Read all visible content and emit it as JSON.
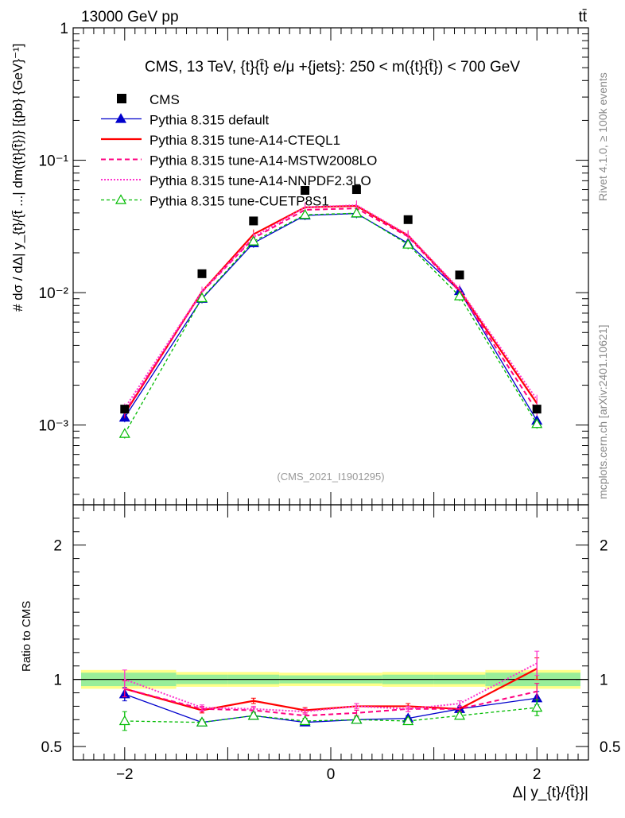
{
  "header": {
    "energy_label": "13000 GeV pp",
    "process_label": "tt̄"
  },
  "side_labels": {
    "rivet": "Rivet 4.1.0, ≥ 100k events",
    "mcplots": "mcplots.cern.ch [arXiv:2401.10621]"
  },
  "chart_data": {
    "type": "line",
    "title": "CMS, 13 TeV, {t}{t̄} e/μ +{jets}: 250 < m({t}{t̄}) < 700 GeV",
    "watermark": "(CMS_2021_I1901295)",
    "xlabel": "Δ| y_{t}/{t̄}}|",
    "ylabel_main": "# dσ / dΔ| y_{t}/{t̄ ...| dm({t}{t̄})} [{pb} {GeV}⁻¹]",
    "ylabel_ratio": "Ratio to CMS",
    "xlim": [
      -2.5,
      2.5
    ],
    "ylim_main": [
      0.00025,
      1
    ],
    "ylim_ratio": [
      0.4,
      2.3
    ],
    "x_ticks": [
      -2,
      0,
      2
    ],
    "x_tick_labels": [
      "−2",
      "0",
      "2"
    ],
    "y_main_ticks": [
      {
        "value": 1,
        "label": "1"
      },
      {
        "value": 0.1,
        "label": "10⁻¹"
      },
      {
        "value": 0.01,
        "label": "10⁻²"
      },
      {
        "value": 0.001,
        "label": "10⁻³"
      }
    ],
    "y_ratio_ticks": [
      {
        "value": 2,
        "label": "2"
      },
      {
        "value": 1,
        "label": "1"
      },
      {
        "value": 0.5,
        "label": "0.5"
      }
    ],
    "bin_edges": [
      -2.5,
      -1.5,
      -1.0,
      -0.5,
      0.0,
      0.5,
      1.0,
      1.5,
      2.5
    ],
    "x": [
      -2.0,
      -1.25,
      -0.75,
      -0.25,
      0.25,
      0.75,
      1.25,
      2.0
    ],
    "band_inner": [
      0.05,
      0.035,
      0.035,
      0.03,
      0.03,
      0.035,
      0.035,
      0.05
    ],
    "band_outer": [
      0.07,
      0.055,
      0.055,
      0.05,
      0.05,
      0.055,
      0.055,
      0.07
    ],
    "data": {
      "name": "CMS",
      "values": [
        0.00132,
        0.0139,
        0.0348,
        0.0592,
        0.06,
        0.0356,
        0.0136,
        0.00132
      ],
      "color": "#000000"
    },
    "series": [
      {
        "name": "Pythia 8.315 default",
        "color": "#0000cc",
        "dash": "",
        "width": 1.3,
        "marker": "triangle-filled",
        "values": [
          0.00114,
          0.009,
          0.0237,
          0.0383,
          0.0396,
          0.0236,
          0.0103,
          0.00108
        ],
        "ratio": [
          0.89,
          0.68,
          0.73,
          0.68,
          0.7,
          0.71,
          0.78,
          0.86
        ],
        "ratio_err": [
          0.05,
          0.02,
          0.02,
          0.02,
          0.02,
          0.02,
          0.02,
          0.05
        ]
      },
      {
        "name": "Pythia 8.315 tune-A14-CTEQL1",
        "color": "#ff0000",
        "dash": "",
        "width": 2.2,
        "marker": "none",
        "values": [
          0.00122,
          0.0102,
          0.0276,
          0.0441,
          0.0452,
          0.027,
          0.0104,
          0.00146
        ],
        "ratio": [
          0.93,
          0.77,
          0.84,
          0.77,
          0.8,
          0.8,
          0.78,
          1.08
        ],
        "ratio_err": [
          0.06,
          0.02,
          0.02,
          0.02,
          0.02,
          0.02,
          0.02,
          0.08
        ]
      },
      {
        "name": "Pythia 8.315 tune-A14-MSTW2008LO",
        "color": "#ff0080",
        "dash": "6,4",
        "width": 2.0,
        "marker": "none",
        "values": [
          0.00125,
          0.0101,
          0.0258,
          0.0422,
          0.0433,
          0.0265,
          0.0102,
          0.00128
        ],
        "ratio": [
          0.93,
          0.78,
          0.77,
          0.73,
          0.75,
          0.78,
          0.78,
          0.91
        ],
        "ratio_err": [
          0.06,
          0.02,
          0.02,
          0.02,
          0.02,
          0.02,
          0.02,
          0.06
        ]
      },
      {
        "name": "Pythia 8.315 tune-A14-NNPDF2.3LO",
        "color": "#ff33cc",
        "dash": "2,2",
        "width": 2.0,
        "marker": "none",
        "values": [
          0.00134,
          0.0102,
          0.0263,
          0.0441,
          0.0458,
          0.0273,
          0.0106,
          0.00156
        ],
        "ratio": [
          1.0,
          0.79,
          0.78,
          0.76,
          0.8,
          0.78,
          0.82,
          1.12
        ],
        "ratio_err": [
          0.07,
          0.02,
          0.02,
          0.02,
          0.02,
          0.02,
          0.02,
          0.09
        ]
      },
      {
        "name": "Pythia 8.315 tune-CUETP8S1",
        "color": "#00bb00",
        "dash": "4,3",
        "width": 1.3,
        "marker": "triangle-open",
        "values": [
          0.00086,
          0.0091,
          0.0244,
          0.0387,
          0.0398,
          0.0231,
          0.0094,
          0.00102
        ],
        "ratio": [
          0.69,
          0.68,
          0.73,
          0.69,
          0.7,
          0.69,
          0.73,
          0.79
        ],
        "ratio_err": [
          0.07,
          0.02,
          0.02,
          0.02,
          0.02,
          0.02,
          0.02,
          0.06
        ]
      }
    ]
  }
}
